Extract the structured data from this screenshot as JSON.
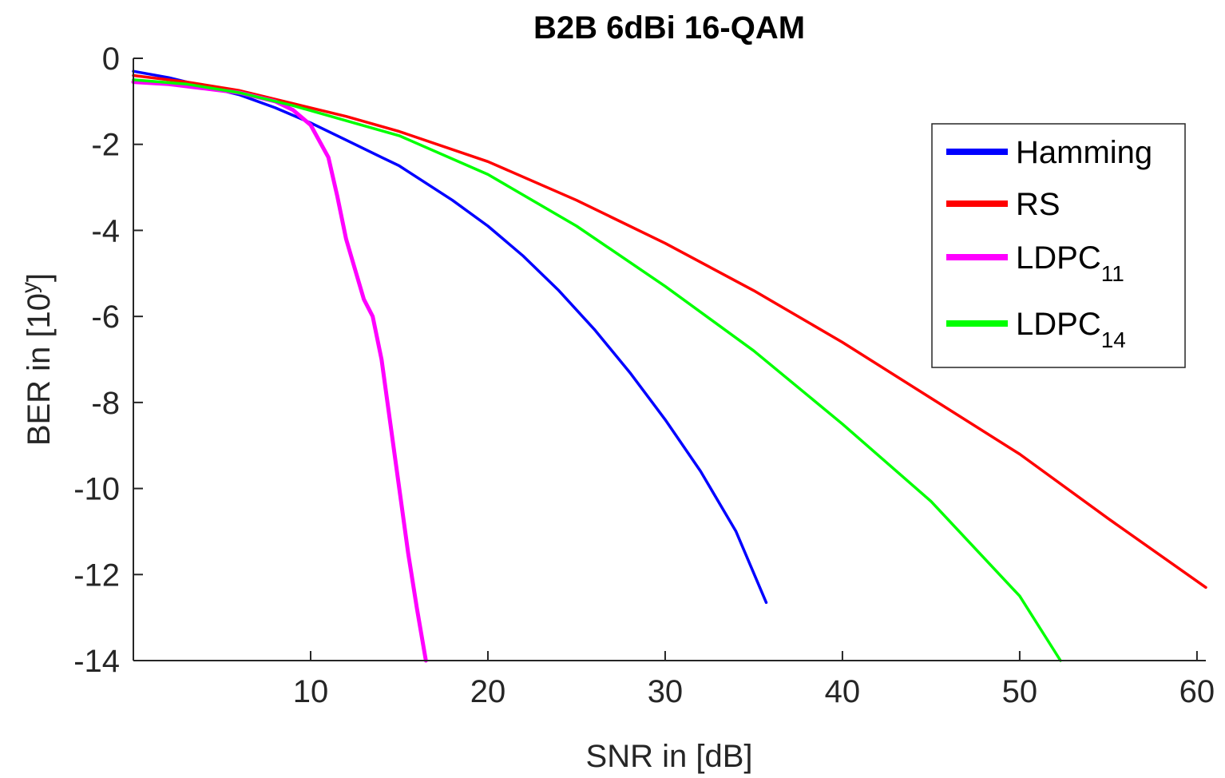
{
  "chart_data": {
    "type": "line",
    "title": "B2B 6dBi 16-QAM",
    "xlabel": "SNR in [dB]",
    "ylabel_main": "BER in [10",
    "ylabel_sup": "y",
    "ylabel_close": "]",
    "xlim": [
      0,
      60.5
    ],
    "ylim": [
      -14,
      0
    ],
    "xticks": [
      10,
      20,
      30,
      40,
      50,
      60
    ],
    "yticks": [
      0,
      -2,
      -4,
      -6,
      -8,
      -10,
      -12,
      -14
    ],
    "grid": false,
    "legend_position": "top-right",
    "series": [
      {
        "name": "Hamming",
        "name_sub": "",
        "color": "#0000ff",
        "points": [
          [
            0,
            -0.3
          ],
          [
            2,
            -0.45
          ],
          [
            4,
            -0.65
          ],
          [
            6,
            -0.85
          ],
          [
            8,
            -1.15
          ],
          [
            10,
            -1.5
          ],
          [
            12,
            -1.9
          ],
          [
            14,
            -2.3
          ],
          [
            15,
            -2.5
          ],
          [
            18,
            -3.3
          ],
          [
            20,
            -3.9
          ],
          [
            22,
            -4.6
          ],
          [
            24,
            -5.4
          ],
          [
            26,
            -6.3
          ],
          [
            28,
            -7.3
          ],
          [
            30,
            -8.4
          ],
          [
            32,
            -9.6
          ],
          [
            34,
            -11.0
          ],
          [
            35.7,
            -12.65
          ]
        ]
      },
      {
        "name": "RS",
        "name_sub": "",
        "color": "#ff0000",
        "points": [
          [
            0,
            -0.4
          ],
          [
            3,
            -0.55
          ],
          [
            6,
            -0.75
          ],
          [
            9,
            -1.05
          ],
          [
            12,
            -1.35
          ],
          [
            15,
            -1.7
          ],
          [
            20,
            -2.4
          ],
          [
            25,
            -3.3
          ],
          [
            30,
            -4.3
          ],
          [
            35,
            -5.4
          ],
          [
            40,
            -6.6
          ],
          [
            45,
            -7.9
          ],
          [
            50,
            -9.2
          ],
          [
            55,
            -10.7
          ],
          [
            60.5,
            -12.3
          ]
        ]
      },
      {
        "name": "LDPC",
        "name_sub": "11",
        "color": "#ff00ff",
        "points": [
          [
            0,
            -0.55
          ],
          [
            2,
            -0.6
          ],
          [
            4,
            -0.7
          ],
          [
            6,
            -0.8
          ],
          [
            8,
            -1.0
          ],
          [
            9,
            -1.2
          ],
          [
            10,
            -1.55
          ],
          [
            11,
            -2.3
          ],
          [
            11.5,
            -3.2
          ],
          [
            12,
            -4.2
          ],
          [
            12.5,
            -4.9
          ],
          [
            13,
            -5.6
          ],
          [
            13.5,
            -6.0
          ],
          [
            14,
            -7.0
          ],
          [
            14.5,
            -8.5
          ],
          [
            15,
            -10.0
          ],
          [
            15.5,
            -11.5
          ],
          [
            16,
            -12.8
          ],
          [
            16.5,
            -14.0
          ]
        ]
      },
      {
        "name": "LDPC",
        "name_sub": "14",
        "color": "#00ff00",
        "points": [
          [
            0,
            -0.5
          ],
          [
            3,
            -0.6
          ],
          [
            6,
            -0.8
          ],
          [
            9,
            -1.1
          ],
          [
            12,
            -1.45
          ],
          [
            15,
            -1.8
          ],
          [
            20,
            -2.7
          ],
          [
            25,
            -3.9
          ],
          [
            30,
            -5.3
          ],
          [
            35,
            -6.8
          ],
          [
            40,
            -8.5
          ],
          [
            45,
            -10.3
          ],
          [
            50,
            -12.5
          ],
          [
            52.3,
            -14.0
          ]
        ]
      }
    ]
  }
}
